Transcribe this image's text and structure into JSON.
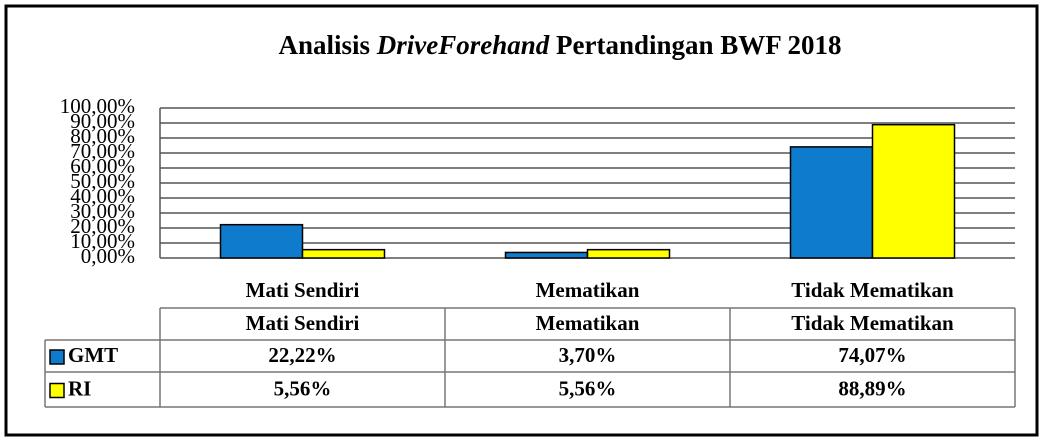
{
  "chart_data": {
    "type": "bar",
    "title": [
      "Analisis",
      "DriveForehand",
      "Pertandingan BWF 2018"
    ],
    "categories": [
      "Mati Sendiri",
      "Mematikan",
      "Tidak Mematikan"
    ],
    "series": [
      {
        "name": "GMT",
        "color": "#0f7bcc",
        "values": [
          22.22,
          3.7,
          74.07
        ],
        "value_labels": [
          "22,22%",
          "3,70%",
          "74,07%"
        ]
      },
      {
        "name": "RI",
        "color": "#ffff00",
        "values": [
          5.56,
          5.56,
          88.89
        ],
        "value_labels": [
          "5,56%",
          "5,56%",
          "88,89%"
        ]
      }
    ],
    "ylim": [
      0,
      100
    ],
    "yticks": [
      {
        "value": 0,
        "label": "0,00%"
      },
      {
        "value": 10,
        "label": "10,00%"
      },
      {
        "value": 20,
        "label": "20,00%"
      },
      {
        "value": 30,
        "label": "30,00%"
      },
      {
        "value": 40,
        "label": "40,00%"
      },
      {
        "value": 50,
        "label": "50,00%"
      },
      {
        "value": 60,
        "label": "60,00%"
      },
      {
        "value": 70,
        "label": "70,00%"
      },
      {
        "value": 80,
        "label": "80,00%"
      },
      {
        "value": 90,
        "label": "90,00%"
      },
      {
        "value": 100,
        "label": "100,00%"
      }
    ],
    "grid": true,
    "data_table": true
  }
}
